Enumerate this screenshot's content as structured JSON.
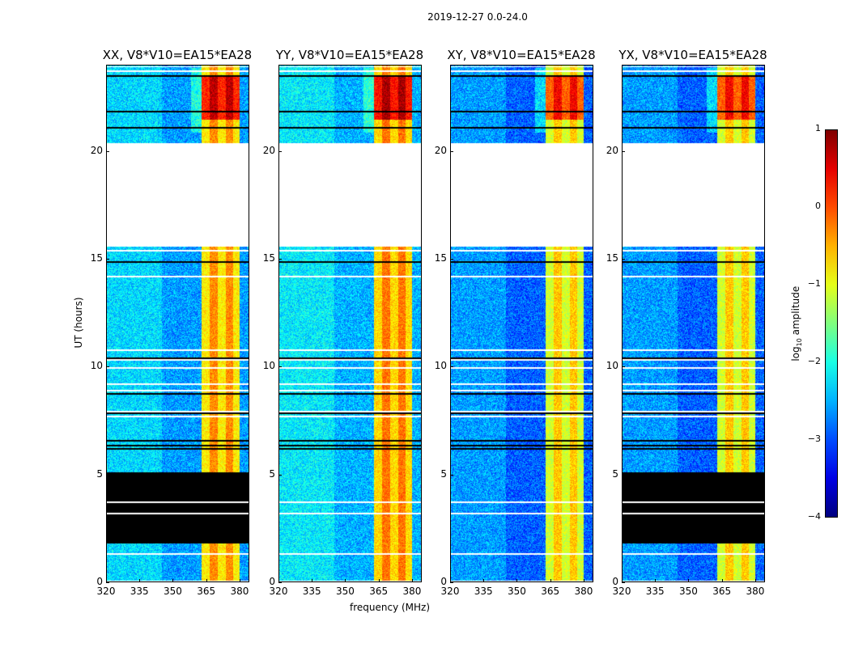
{
  "chart_data": {
    "type": "heatmap",
    "suptitle": "2019-12-27 0.0-24.0",
    "xlabel": "frequency (MHz)",
    "ylabel": "UT (hours)",
    "xlim": [
      320,
      384.4
    ],
    "ylim": [
      0,
      24
    ],
    "xticks": [
      "320",
      "335",
      "350",
      "365",
      "380"
    ],
    "xtick_values": [
      320,
      335,
      350,
      365,
      380
    ],
    "yticks": [
      "0",
      "5",
      "10",
      "15",
      "20"
    ],
    "ytick_values": [
      0,
      5,
      10,
      15,
      20
    ],
    "colorbar": {
      "label_prefix": "log",
      "label_sub": "10",
      "label_suffix": " amplitude",
      "range": [
        -4,
        1
      ],
      "ticks": [
        "1",
        "0",
        "−1",
        "−2",
        "−3",
        "−4"
      ],
      "tick_values": [
        1,
        0,
        -1,
        -2,
        -3,
        -4
      ],
      "colormap": "jet"
    },
    "rfi_band_mhz": [
      363,
      380
    ],
    "strong_rfi_hours": [
      21.5,
      23.5
    ],
    "flagged_gap_hours": [
      15.6,
      20.4
    ],
    "panels": [
      {
        "title": "XX, V8*V10=EA15*EA28",
        "black_hours": [
          1.8,
          5.1
        ],
        "band_level": -0.6,
        "base_level": -2.6
      },
      {
        "title": "YY, V8*V10=EA15*EA28",
        "black_hours": null,
        "band_level": -0.5,
        "base_level": -2.5
      },
      {
        "title": "XY, V8*V10=EA15*EA28",
        "black_hours": null,
        "band_level": -0.9,
        "base_level": -2.9
      },
      {
        "title": "YX, V8*V10=EA15*EA28",
        "black_hours": [
          1.8,
          5.1
        ],
        "band_level": -0.9,
        "base_level": -2.9
      }
    ]
  }
}
